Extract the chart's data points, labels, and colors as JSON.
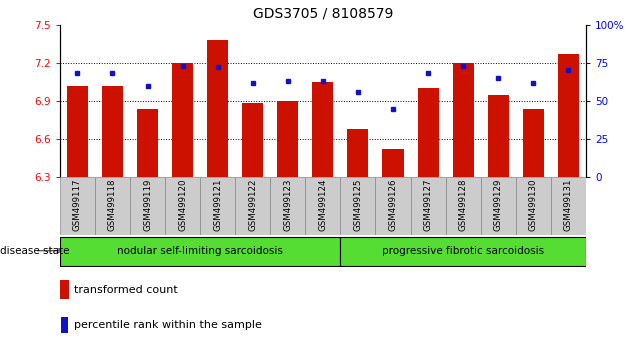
{
  "title": "GDS3705 / 8108579",
  "samples": [
    "GSM499117",
    "GSM499118",
    "GSM499119",
    "GSM499120",
    "GSM499121",
    "GSM499122",
    "GSM499123",
    "GSM499124",
    "GSM499125",
    "GSM499126",
    "GSM499127",
    "GSM499128",
    "GSM499129",
    "GSM499130",
    "GSM499131"
  ],
  "bar_values": [
    7.02,
    7.02,
    6.84,
    7.2,
    7.38,
    6.88,
    6.9,
    7.05,
    6.68,
    6.52,
    7.0,
    7.2,
    6.95,
    6.84,
    7.27
  ],
  "percentile_values": [
    68,
    68,
    60,
    73,
    72,
    62,
    63,
    63,
    56,
    45,
    68,
    73,
    65,
    62,
    70
  ],
  "y_min": 6.3,
  "y_max": 7.5,
  "y_ticks": [
    6.3,
    6.6,
    6.9,
    7.2,
    7.5
  ],
  "right_y_ticks": [
    0,
    25,
    50,
    75,
    100
  ],
  "bar_color": "#cc1100",
  "dot_color": "#1111cc",
  "group1_label": "nodular self-limiting sarcoidosis",
  "group1_count": 8,
  "group2_label": "progressive fibrotic sarcoidosis",
  "group2_count": 7,
  "group_bg_color": "#55dd33",
  "sample_bg_color": "#cccccc",
  "legend_bar_label": "transformed count",
  "legend_dot_label": "percentile rank within the sample",
  "disease_state_label": "disease state",
  "grid_lines": [
    6.6,
    6.9,
    7.2
  ]
}
